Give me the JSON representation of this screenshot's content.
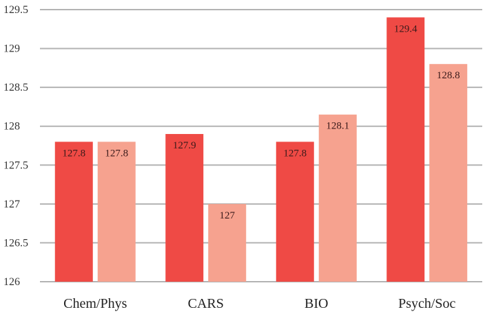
{
  "chart_data": {
    "type": "bar",
    "title": "",
    "xlabel": "",
    "ylabel": "",
    "categories": [
      "Chem/Phys",
      "CARS",
      "BIO",
      "Psych/Soc"
    ],
    "series": [
      {
        "values": [
          127.8,
          127.9,
          127.8,
          129.4
        ],
        "labels": [
          "127.8",
          "127.9",
          "127.8",
          "129.4"
        ],
        "color": "#ef4a45"
      },
      {
        "values": [
          127.8,
          127,
          128.15,
          128.8
        ],
        "labels": [
          "127.8",
          "127",
          "128.1",
          "128.8"
        ],
        "color": "#f6a28f"
      }
    ],
    "ylim": [
      126,
      129.5
    ],
    "yticks": [
      126,
      126.5,
      127,
      127.5,
      128,
      128.5,
      129,
      129.5
    ],
    "ytick_labels": [
      "126",
      "126.5",
      "127",
      "127.5",
      "128",
      "128.5",
      "129",
      "129.5"
    ],
    "grid": true,
    "legend": "none"
  }
}
